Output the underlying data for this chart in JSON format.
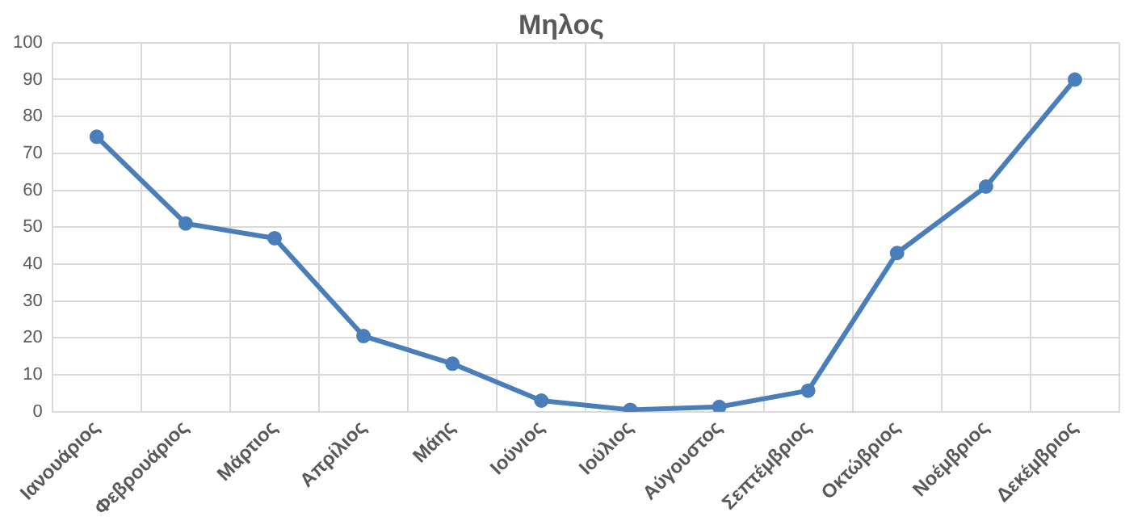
{
  "chart_data": {
    "type": "line",
    "title": "Μηλος",
    "categories": [
      "Ιανουάριος",
      "Φεβρουάριος",
      "Μάρτιος",
      "Απρίλιος",
      "Μάης",
      "Ιούνιος",
      "Ιούλιος",
      "Αύγουστος",
      "Σεπτέμβριος",
      "Οκτώβριος",
      "Νοέμβριος",
      "Δεκέμβριος"
    ],
    "series": [
      {
        "color": "#4a7ebb",
        "values": [
          74.5,
          51,
          47,
          20.5,
          13,
          3,
          0.5,
          1.3,
          5.7,
          43,
          61,
          90
        ]
      }
    ],
    "ylim": [
      0,
      100
    ],
    "yticks": [
      0,
      10,
      20,
      30,
      40,
      50,
      60,
      70,
      80,
      90,
      100
    ],
    "grid": true,
    "legend": false,
    "marker": "circle",
    "line_style": "solid"
  }
}
